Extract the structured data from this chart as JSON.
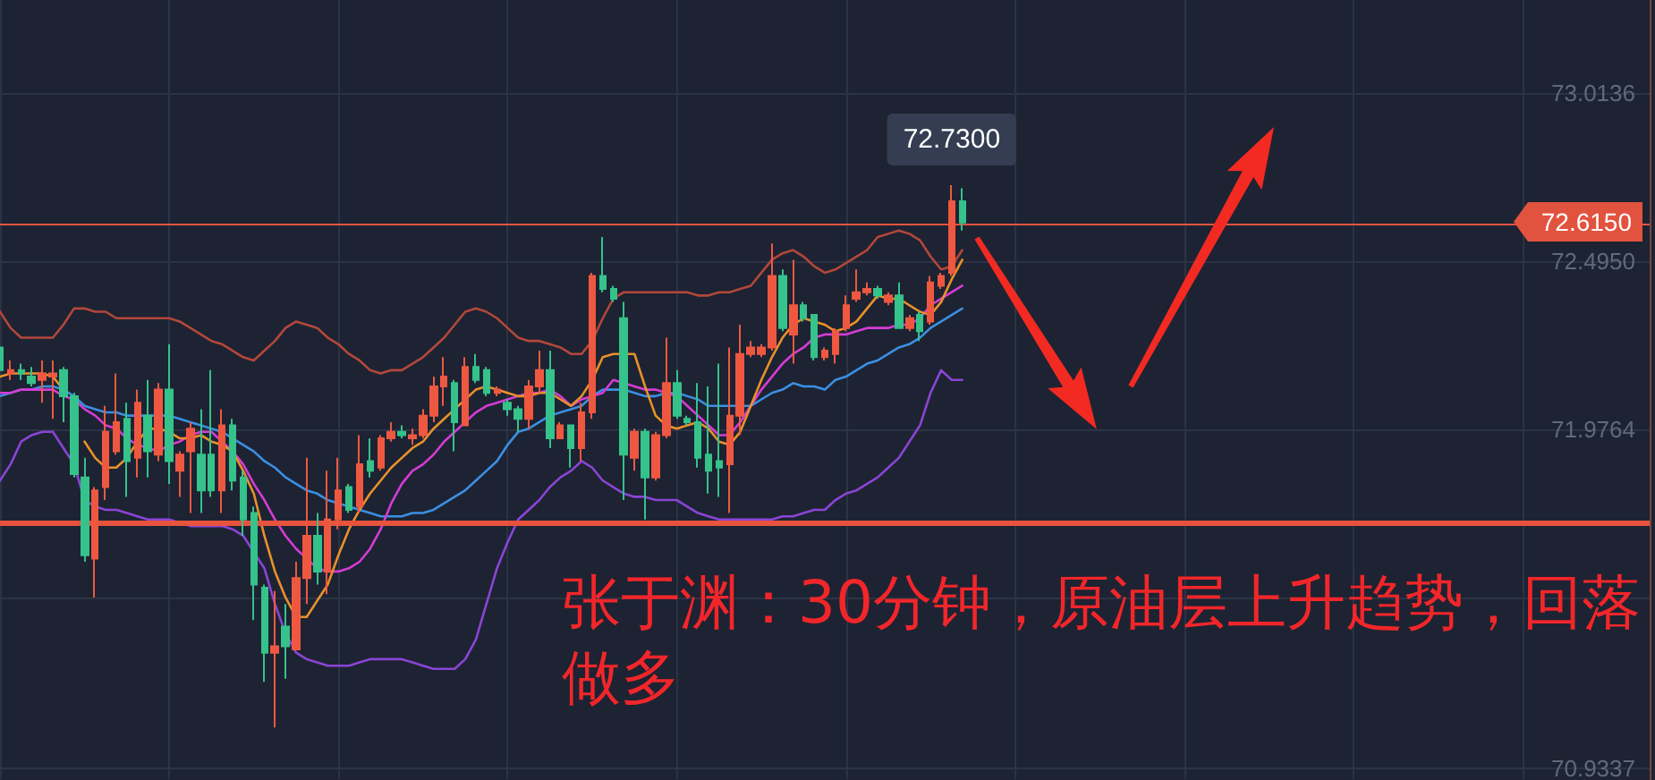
{
  "chart_data": {
    "type": "candlestick",
    "categories": [
      null,
      null,
      null,
      null,
      null,
      null,
      null,
      null,
      null,
      null,
      null,
      null,
      null,
      null,
      null,
      null,
      null,
      null,
      null,
      null,
      null,
      null,
      null,
      null,
      null,
      null,
      null,
      null,
      null,
      null,
      null,
      null,
      null,
      null,
      null,
      null,
      null,
      null,
      null,
      null,
      null,
      null,
      null,
      null,
      null,
      null,
      null,
      null,
      null,
      null,
      null,
      null,
      null,
      null,
      null,
      null,
      null,
      null,
      null,
      null,
      null,
      null,
      null,
      null,
      null,
      null,
      null,
      null,
      null,
      null,
      null,
      null,
      null,
      null,
      null,
      null,
      null,
      null,
      null,
      null,
      null,
      null,
      null,
      null,
      null,
      null,
      null,
      null,
      null,
      null,
      null,
      null,
      null,
      null,
      null,
      null,
      null,
      null,
      null,
      null,
      null,
      null,
      null,
      null,
      null,
      null,
      null,
      null,
      null,
      null,
      null,
      null,
      null,
      null,
      null,
      null,
      null,
      null,
      null,
      null,
      null,
      null,
      null,
      null,
      null,
      null,
      null,
      null,
      null,
      null,
      null,
      null,
      null,
      null,
      null,
      null,
      null,
      null,
      null,
      null,
      null,
      null,
      null,
      null,
      null,
      null,
      null,
      null,
      null,
      null,
      null,
      null,
      null,
      null,
      null,
      null,
      null
    ],
    "ohlc": [
      [
        72.23,
        72.24,
        72.15,
        72.16
      ],
      [
        72.15,
        72.19,
        72.13,
        72.16
      ],
      [
        72.16,
        72.18,
        72.13,
        72.15
      ],
      [
        72.14,
        72.17,
        72.11,
        72.12
      ],
      [
        72.13,
        72.19,
        72.06,
        72.15
      ],
      [
        72.14,
        72.19,
        72.01,
        72.15
      ],
      [
        72.16,
        72.17,
        72.0,
        72.08
      ],
      [
        72.08,
        72.09,
        71.83,
        71.84
      ],
      [
        71.83,
        71.89,
        71.57,
        71.59
      ],
      [
        71.58,
        71.8,
        71.46,
        71.79
      ],
      [
        71.8,
        72.05,
        71.76,
        71.97
      ],
      [
        71.91,
        72.15,
        71.9,
        72.0
      ],
      [
        72.01,
        72.06,
        71.77,
        71.88
      ],
      [
        71.89,
        72.1,
        71.83,
        72.06
      ],
      [
        72.02,
        72.13,
        71.83,
        71.91
      ],
      [
        71.9,
        72.12,
        71.88,
        72.1
      ],
      [
        72.1,
        72.24,
        71.81,
        71.88
      ],
      [
        71.85,
        71.91,
        71.77,
        71.9
      ],
      [
        71.91,
        72.0,
        71.72,
        71.98
      ],
      [
        71.9,
        72.04,
        71.72,
        71.79
      ],
      [
        71.9,
        72.16,
        71.77,
        71.79
      ],
      [
        71.79,
        72.04,
        71.72,
        71.99
      ],
      [
        71.99,
        72.01,
        71.79,
        71.82
      ],
      [
        71.83,
        71.85,
        71.65,
        71.7
      ],
      [
        71.72,
        71.74,
        71.39,
        71.5
      ],
      [
        71.49,
        71.5,
        71.2,
        71.29
      ],
      [
        71.29,
        71.48,
        71.06,
        71.31
      ],
      [
        71.37,
        71.44,
        71.21,
        71.31
      ],
      [
        71.3,
        71.57,
        71.3,
        71.52
      ],
      [
        71.52,
        71.89,
        71.44,
        71.65
      ],
      [
        71.65,
        71.72,
        71.5,
        71.54
      ],
      [
        71.54,
        71.85,
        71.47,
        71.7
      ],
      [
        71.7,
        71.89,
        71.67,
        71.79
      ],
      [
        71.8,
        71.81,
        71.72,
        71.73
      ],
      [
        71.74,
        71.96,
        71.72,
        71.87
      ],
      [
        71.88,
        71.95,
        71.83,
        71.85
      ],
      [
        71.86,
        71.96,
        71.85,
        71.95
      ],
      [
        71.95,
        72.0,
        71.94,
        71.97
      ],
      [
        71.97,
        71.99,
        71.95,
        71.96
      ],
      [
        71.95,
        71.98,
        71.93,
        71.96
      ],
      [
        71.96,
        72.04,
        71.95,
        72.02
      ],
      [
        72.02,
        72.14,
        72.0,
        72.11
      ],
      [
        72.11,
        72.2,
        72.05,
        72.14
      ],
      [
        72.12,
        72.13,
        71.91,
        72.0
      ],
      [
        71.99,
        72.2,
        71.99,
        72.17
      ],
      [
        72.17,
        72.21,
        72.12,
        72.13
      ],
      [
        72.16,
        72.17,
        72.08,
        72.09
      ],
      [
        72.09,
        72.11,
        72.08,
        72.1
      ],
      [
        72.06,
        72.07,
        72.02,
        72.04
      ],
      [
        72.04,
        72.05,
        71.97,
        72.01
      ],
      [
        72.01,
        72.13,
        71.98,
        72.11
      ],
      [
        72.11,
        72.22,
        72.09,
        72.16
      ],
      [
        72.16,
        72.22,
        71.92,
        71.95
      ],
      [
        71.95,
        72.0,
        71.95,
        71.99
      ],
      [
        71.99,
        71.99,
        71.86,
        71.92
      ],
      [
        71.92,
        72.06,
        71.88,
        72.03
      ],
      [
        72.03,
        72.46,
        72.01,
        72.45
      ],
      [
        72.45,
        72.57,
        72.4,
        72.41
      ],
      [
        72.41,
        72.42,
        72.37,
        72.38
      ],
      [
        72.32,
        72.37,
        71.76,
        71.9
      ],
      [
        71.89,
        71.98,
        71.85,
        71.97
      ],
      [
        71.97,
        71.98,
        71.7,
        71.83
      ],
      [
        71.83,
        71.97,
        71.82,
        71.96
      ],
      [
        71.96,
        72.26,
        71.95,
        72.12
      ],
      [
        72.12,
        72.16,
        72.01,
        72.02
      ],
      [
        72.01,
        72.02,
        71.99,
        72.0
      ],
      [
        72.0,
        72.12,
        71.86,
        71.89
      ],
      [
        71.9,
        72.11,
        71.78,
        71.85
      ],
      [
        71.88,
        72.18,
        71.77,
        71.86
      ],
      [
        71.87,
        72.23,
        71.72,
        72.02
      ],
      [
        72.02,
        72.3,
        71.96,
        72.21
      ],
      [
        72.21,
        72.25,
        72.2,
        72.23
      ],
      [
        72.21,
        72.24,
        72.2,
        72.23
      ],
      [
        72.23,
        72.55,
        72.22,
        72.45
      ],
      [
        72.45,
        72.47,
        72.28,
        72.29
      ],
      [
        72.27,
        72.5,
        72.18,
        72.36
      ],
      [
        72.36,
        72.37,
        72.31,
        72.32
      ],
      [
        72.33,
        72.33,
        72.19,
        72.2
      ],
      [
        72.2,
        72.23,
        72.19,
        72.22
      ],
      [
        72.21,
        72.29,
        72.18,
        72.28
      ],
      [
        72.29,
        72.39,
        72.28,
        72.36
      ],
      [
        72.38,
        72.47,
        72.37,
        72.4
      ],
      [
        72.4,
        72.43,
        72.39,
        72.41
      ],
      [
        72.41,
        72.42,
        72.38,
        72.39
      ],
      [
        72.37,
        72.4,
        72.36,
        72.39
      ],
      [
        72.39,
        72.43,
        72.29,
        72.29
      ],
      [
        72.29,
        72.33,
        72.28,
        72.32
      ],
      [
        72.33,
        72.34,
        72.25,
        72.28
      ],
      [
        72.31,
        72.45,
        72.3,
        72.43
      ],
      [
        72.42,
        72.46,
        72.41,
        72.45
      ],
      [
        72.46,
        72.73,
        72.45,
        72.68
      ],
      [
        72.68,
        72.72,
        72.59,
        72.615
      ],
      null,
      null,
      null,
      null,
      null,
      null,
      null,
      null,
      null,
      null,
      null,
      null,
      null,
      null,
      null,
      null,
      null,
      null,
      null,
      null,
      null,
      null,
      null,
      null,
      null,
      null,
      null,
      null,
      null,
      null,
      null,
      null,
      null,
      null,
      null,
      null,
      null,
      null,
      null,
      null,
      null,
      null,
      null,
      null,
      null,
      null,
      null,
      null,
      null,
      null,
      null,
      null,
      null,
      null,
      null,
      null,
      null,
      null,
      null,
      null,
      null,
      null,
      null,
      null,
      null
    ],
    "colors": [
      "#35c28b",
      "#ef5840",
      "#35c28b",
      "#35c28b",
      "#ef5840",
      "#ef5840",
      "#35c28b",
      "#35c28b",
      "#35c28b",
      "#ef5840",
      "#ef5840",
      "#ef5840",
      "#35c28b",
      "#ef5840",
      "#35c28b",
      "#ef5840",
      "#35c28b",
      "#ef5840",
      "#ef5840",
      "#35c28b",
      "#35c28b",
      "#ef5840",
      "#35c28b",
      "#35c28b",
      "#35c28b",
      "#35c28b",
      "#ef5840",
      "#35c28b",
      "#ef5840",
      "#ef5840",
      "#35c28b",
      "#ef5840",
      "#ef5840",
      "#35c28b",
      "#ef5840",
      "#35c28b",
      "#ef5840",
      "#ef5840",
      "#35c28b",
      "#ef5840",
      "#ef5840",
      "#ef5840",
      "#ef5840",
      "#35c28b",
      "#ef5840",
      "#35c28b",
      "#35c28b",
      "#ef5840",
      "#35c28b",
      "#35c28b",
      "#ef5840",
      "#ef5840",
      "#35c28b",
      "#ef5840",
      "#35c28b",
      "#ef5840",
      "#ef5840",
      "#35c28b",
      "#35c28b",
      "#35c28b",
      "#ef5840",
      "#35c28b",
      "#ef5840",
      "#ef5840",
      "#35c28b",
      "#35c28b",
      "#35c28b",
      "#35c28b",
      "#35c28b",
      "#ef5840",
      "#ef5840",
      "#ef5840",
      "#ef5840",
      "#ef5840",
      "#35c28b",
      "#ef5840",
      "#35c28b",
      "#35c28b",
      "#ef5840",
      "#ef5840",
      "#ef5840",
      "#ef5840",
      "#ef5840",
      "#35c28b",
      "#ef5840",
      "#35c28b",
      "#ef5840",
      "#35c28b",
      "#ef5840",
      "#ef5840",
      "#ef5840",
      "#35c28b",
      null,
      null,
      null,
      null,
      null,
      null,
      null,
      null,
      null,
      null,
      null,
      null,
      null,
      null,
      null,
      null,
      null,
      null,
      null,
      null,
      null,
      null,
      null,
      null,
      null,
      null,
      null,
      null,
      null,
      null,
      null,
      null,
      null,
      null,
      null,
      null,
      null,
      null,
      null,
      null,
      null,
      null,
      null,
      null,
      null,
      null,
      null,
      null,
      null,
      null,
      null,
      null,
      null,
      null,
      null,
      null,
      null,
      null,
      null,
      null,
      null,
      null,
      null,
      null,
      null
    ],
    "series": [
      {
        "type": "line",
        "color": "#b3473b",
        "values": [
          72.34,
          72.29,
          72.26,
          72.26,
          72.26,
          72.26,
          72.3,
          72.35,
          72.35,
          72.34,
          72.34,
          72.32,
          72.32,
          72.32,
          72.32,
          72.32,
          72.32,
          72.31,
          72.29,
          72.27,
          72.25,
          72.24,
          72.22,
          72.2,
          72.19,
          72.22,
          72.25,
          72.29,
          72.31,
          72.3,
          72.29,
          72.26,
          72.24,
          72.21,
          72.19,
          72.16,
          72.15,
          72.16,
          72.16,
          72.18,
          72.2,
          72.23,
          72.26,
          72.3,
          72.34,
          72.35,
          72.34,
          72.32,
          72.29,
          72.26,
          72.25,
          72.25,
          72.24,
          72.23,
          72.21,
          72.21,
          72.25,
          72.32,
          72.38,
          72.4,
          72.4,
          72.4,
          72.4,
          72.4,
          72.4,
          72.4,
          72.39,
          72.39,
          72.4,
          72.4,
          72.41,
          72.42,
          72.46,
          72.5,
          72.52,
          72.53,
          72.51,
          72.48,
          72.46,
          72.47,
          72.49,
          72.51,
          72.53,
          72.57,
          72.58,
          72.59,
          72.58,
          72.56,
          72.51,
          72.47,
          72.48,
          72.53,
          null,
          null,
          null,
          null,
          null,
          null,
          null,
          null,
          null,
          null,
          null,
          null,
          null,
          null,
          null,
          null,
          null,
          null,
          null,
          null,
          null,
          null,
          null,
          null,
          null,
          null,
          null,
          null,
          null,
          null,
          null,
          null,
          null,
          null,
          null,
          null,
          null,
          null,
          null,
          null,
          null,
          null,
          null,
          null,
          null,
          null,
          null,
          null,
          null,
          null,
          null,
          null,
          null,
          null,
          null,
          null,
          null,
          null,
          null,
          null,
          null,
          null,
          null,
          null,
          null
        ]
      },
      {
        "type": "line",
        "color": "#8b44d6",
        "values": [
          71.82,
          71.87,
          71.94,
          71.96,
          71.97,
          71.97,
          71.92,
          71.87,
          71.76,
          71.74,
          71.73,
          71.73,
          71.72,
          71.71,
          71.7,
          71.7,
          71.7,
          71.69,
          71.68,
          71.68,
          71.68,
          71.68,
          71.67,
          71.65,
          71.6,
          71.55,
          71.44,
          71.35,
          71.29,
          71.27,
          71.26,
          71.25,
          71.25,
          71.25,
          71.26,
          71.27,
          71.27,
          71.27,
          71.27,
          71.26,
          71.25,
          71.24,
          71.24,
          71.24,
          71.27,
          71.33,
          71.44,
          71.55,
          71.63,
          71.7,
          71.73,
          71.76,
          71.8,
          71.83,
          71.85,
          71.88,
          71.86,
          71.82,
          71.8,
          71.78,
          71.77,
          71.77,
          71.76,
          71.76,
          71.76,
          71.74,
          71.72,
          71.71,
          71.7,
          71.7,
          71.7,
          71.7,
          71.7,
          71.7,
          71.71,
          71.71,
          71.72,
          71.73,
          71.73,
          71.76,
          71.78,
          71.79,
          71.81,
          71.83,
          71.86,
          71.89,
          71.94,
          71.99,
          72.09,
          72.16,
          72.13,
          72.13,
          null,
          null,
          null,
          null,
          null,
          null,
          null,
          null,
          null,
          null,
          null,
          null,
          null,
          null,
          null,
          null,
          null,
          null,
          null,
          null,
          null,
          null,
          null,
          null,
          null,
          null,
          null,
          null,
          null,
          null,
          null,
          null,
          null,
          null,
          null,
          null,
          null,
          null,
          null,
          null,
          null,
          null,
          null,
          null,
          null,
          null,
          null,
          null,
          null,
          null,
          null,
          null,
          null,
          null,
          null,
          null,
          null,
          null,
          null,
          null,
          null,
          null,
          null,
          null,
          null
        ]
      },
      {
        "type": "line",
        "color": "#3b8fe3",
        "values": [
          72.08,
          72.09,
          72.1,
          72.1,
          72.11,
          72.11,
          72.1,
          72.08,
          72.05,
          72.04,
          72.03,
          72.03,
          72.02,
          72.02,
          72.02,
          72.02,
          72.02,
          72.01,
          72.0,
          71.99,
          71.98,
          71.97,
          71.95,
          71.93,
          71.91,
          71.88,
          71.86,
          71.83,
          71.81,
          71.79,
          71.78,
          71.76,
          71.75,
          71.74,
          71.73,
          71.72,
          71.71,
          71.71,
          71.71,
          71.72,
          71.72,
          71.73,
          71.75,
          71.77,
          71.79,
          71.82,
          71.85,
          71.88,
          71.93,
          71.97,
          71.98,
          72.0,
          72.02,
          72.03,
          72.04,
          72.05,
          72.08,
          72.1,
          72.1,
          72.1,
          72.09,
          72.08,
          72.08,
          72.09,
          72.09,
          72.08,
          72.07,
          72.05,
          72.05,
          72.05,
          72.05,
          72.05,
          72.07,
          72.09,
          72.1,
          72.12,
          72.11,
          72.11,
          72.1,
          72.13,
          72.14,
          72.16,
          72.18,
          72.19,
          72.21,
          72.23,
          72.24,
          72.26,
          72.29,
          72.31,
          72.33,
          72.35,
          null,
          null,
          null,
          null,
          null,
          null,
          null,
          null,
          null,
          null,
          null,
          null,
          null,
          null,
          null,
          null,
          null,
          null,
          null,
          null,
          null,
          null,
          null,
          null,
          null,
          null,
          null,
          null,
          null,
          null,
          null,
          null,
          null,
          null,
          null,
          null,
          null,
          null,
          null,
          null,
          null,
          null,
          null,
          null,
          null,
          null,
          null,
          null,
          null,
          null,
          null,
          null,
          null,
          null,
          null,
          null,
          null,
          null,
          null,
          null,
          null,
          null,
          null,
          null,
          null
        ]
      },
      {
        "type": "line",
        "color": "#d63bd6",
        "values": [
          72.09,
          72.09,
          72.1,
          72.1,
          72.1,
          72.1,
          72.08,
          72.07,
          72.04,
          72.02,
          71.99,
          71.98,
          71.95,
          71.93,
          71.92,
          71.91,
          71.93,
          71.94,
          71.96,
          71.97,
          71.97,
          71.94,
          71.91,
          71.87,
          71.81,
          71.76,
          71.7,
          71.65,
          71.61,
          71.58,
          71.55,
          71.54,
          71.54,
          71.55,
          71.57,
          71.61,
          71.67,
          71.75,
          71.81,
          71.85,
          71.87,
          71.9,
          71.94,
          71.97,
          72.0,
          72.03,
          72.05,
          72.06,
          72.07,
          72.08,
          72.09,
          72.09,
          72.1,
          72.08,
          72.05,
          72.07,
          72.08,
          72.09,
          72.13,
          72.12,
          72.11,
          72.1,
          72.1,
          72.09,
          72.08,
          72.05,
          72.02,
          71.99,
          71.96,
          71.96,
          72.0,
          72.05,
          72.1,
          72.14,
          72.18,
          72.21,
          72.23,
          72.26,
          72.27,
          72.27,
          72.27,
          72.28,
          72.29,
          72.29,
          72.29,
          72.3,
          72.3,
          72.32,
          72.36,
          72.38,
          72.4,
          72.42,
          null,
          null,
          null,
          null,
          null,
          null,
          null,
          null,
          null,
          null,
          null,
          null,
          null,
          null,
          null,
          null,
          null,
          null,
          null,
          null,
          null,
          null,
          null,
          null,
          null,
          null,
          null,
          null,
          null,
          null,
          null,
          null,
          null,
          null,
          null,
          null,
          null,
          null,
          null,
          null,
          null,
          null,
          null,
          null,
          null,
          null,
          null,
          null,
          null,
          null,
          null,
          null,
          null,
          null,
          null,
          null,
          null,
          null,
          null,
          null,
          null,
          null,
          null,
          null,
          null
        ]
      },
      {
        "type": "line",
        "color": "#e9912a",
        "values": [
          72.14,
          72.15,
          72.15,
          72.15,
          72.15,
          72.14,
          72.1,
          null,
          71.94,
          71.89,
          71.86,
          71.86,
          71.89,
          71.94,
          71.98,
          71.98,
          71.97,
          71.95,
          71.95,
          71.96,
          71.94,
          71.93,
          71.91,
          71.85,
          71.78,
          71.65,
          71.54,
          71.46,
          71.4,
          71.4,
          71.45,
          71.5,
          71.59,
          71.67,
          71.73,
          71.78,
          71.82,
          71.86,
          71.89,
          71.92,
          71.94,
          71.98,
          72.01,
          72.04,
          72.07,
          72.1,
          72.11,
          72.1,
          72.09,
          72.08,
          72.08,
          72.09,
          72.09,
          72.07,
          72.05,
          72.08,
          72.13,
          72.2,
          72.21,
          72.21,
          72.21,
          72.11,
          72.02,
          71.99,
          71.98,
          71.99,
          72.0,
          71.98,
          71.94,
          71.93,
          71.97,
          72.05,
          72.13,
          72.2,
          72.26,
          72.3,
          72.32,
          72.31,
          72.3,
          72.28,
          72.29,
          72.31,
          72.35,
          72.39,
          72.38,
          72.38,
          72.36,
          72.34,
          72.33,
          72.37,
          72.44,
          72.5,
          null,
          null,
          null,
          null,
          null,
          null,
          null,
          null,
          null,
          null,
          null,
          null,
          null,
          null,
          null,
          null,
          null,
          null,
          null,
          null,
          null,
          null,
          null,
          null,
          null,
          null,
          null,
          null,
          null,
          null,
          null,
          null,
          null,
          null,
          null,
          null,
          null,
          null,
          null,
          null,
          null,
          null,
          null,
          null,
          null,
          null,
          null,
          null,
          null,
          null,
          null,
          null,
          null,
          null,
          null,
          null,
          null,
          null,
          null,
          null,
          null,
          null,
          null,
          null,
          null
        ]
      }
    ],
    "ylim": [
      70.9,
      73.3
    ],
    "yticks": [
      73.0136,
      {
        "value": 72.495,
        "label": "72.4950"
      },
      71.9764,
      {
        "value": 71.4578,
        "label": null
      },
      70.9337
    ],
    "grid": true,
    "tick_labels": "y",
    "marker": "none",
    "ref_lines": [
      {
        "axis": "y",
        "value": 72.615,
        "label": "72.6150",
        "color": "#e2533f"
      },
      {
        "axis": "y",
        "value": 71.69,
        "color": "#e8533d"
      }
    ],
    "annotations": [
      {
        "text": "72.7300",
        "y": 72.73
      },
      "张于渊：30分钟，原油层上升趋势，回落做多"
    ]
  }
}
